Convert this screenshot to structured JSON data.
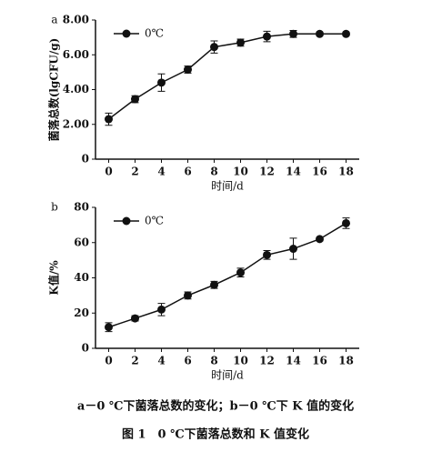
{
  "chart_data": [
    {
      "type": "line",
      "panel": "a",
      "ylabel": "菌落总数(lgCFU/g)",
      "xlabel": "时间/d",
      "x": [
        0,
        2,
        4,
        6,
        8,
        10,
        12,
        14,
        16,
        18
      ],
      "xlim": [
        -1,
        19
      ],
      "xticks": [
        0,
        2,
        4,
        6,
        8,
        10,
        12,
        14,
        16,
        18
      ],
      "ylim": [
        0,
        8
      ],
      "yticks": [
        0,
        {
          "value": 2,
          "label": "2.00"
        },
        {
          "value": 4,
          "label": "4.00"
        },
        {
          "value": 6,
          "label": "6.00"
        },
        {
          "value": 8,
          "label": "8.00"
        }
      ],
      "legend": "upper left",
      "series": [
        {
          "name": "0℃",
          "color": "#111111",
          "values": [
            2.3,
            3.45,
            4.4,
            5.15,
            6.45,
            6.7,
            7.05,
            7.2,
            7.2,
            7.2
          ],
          "errors": [
            0.35,
            0.2,
            0.5,
            0.2,
            0.35,
            0.2,
            0.3,
            0.2,
            0.1,
            0.1
          ]
        }
      ]
    },
    {
      "type": "line",
      "panel": "b",
      "ylabel": "K值/%",
      "xlabel": "时间/d",
      "x": [
        0,
        2,
        4,
        6,
        8,
        10,
        12,
        14,
        16,
        18
      ],
      "xlim": [
        -1,
        19
      ],
      "xticks": [
        0,
        2,
        4,
        6,
        8,
        10,
        12,
        14,
        16,
        18
      ],
      "ylim": [
        0,
        80
      ],
      "yticks": [
        0,
        20,
        40,
        60,
        80
      ],
      "legend": "upper left",
      "series": [
        {
          "name": "0℃",
          "color": "#111111",
          "values": [
            12,
            17,
            22,
            30,
            36,
            43,
            53,
            56.5,
            62,
            71
          ],
          "errors": [
            2.5,
            1.5,
            3.5,
            2,
            2,
            2.5,
            2.5,
            6,
            1,
            3
          ]
        }
      ]
    }
  ],
  "caption": "a－0 ℃下菌落总数的变化；b－0 ℃下 K 值的变化",
  "figure_title": "图 1　0 ℃下菌落总数和 K 值变化"
}
